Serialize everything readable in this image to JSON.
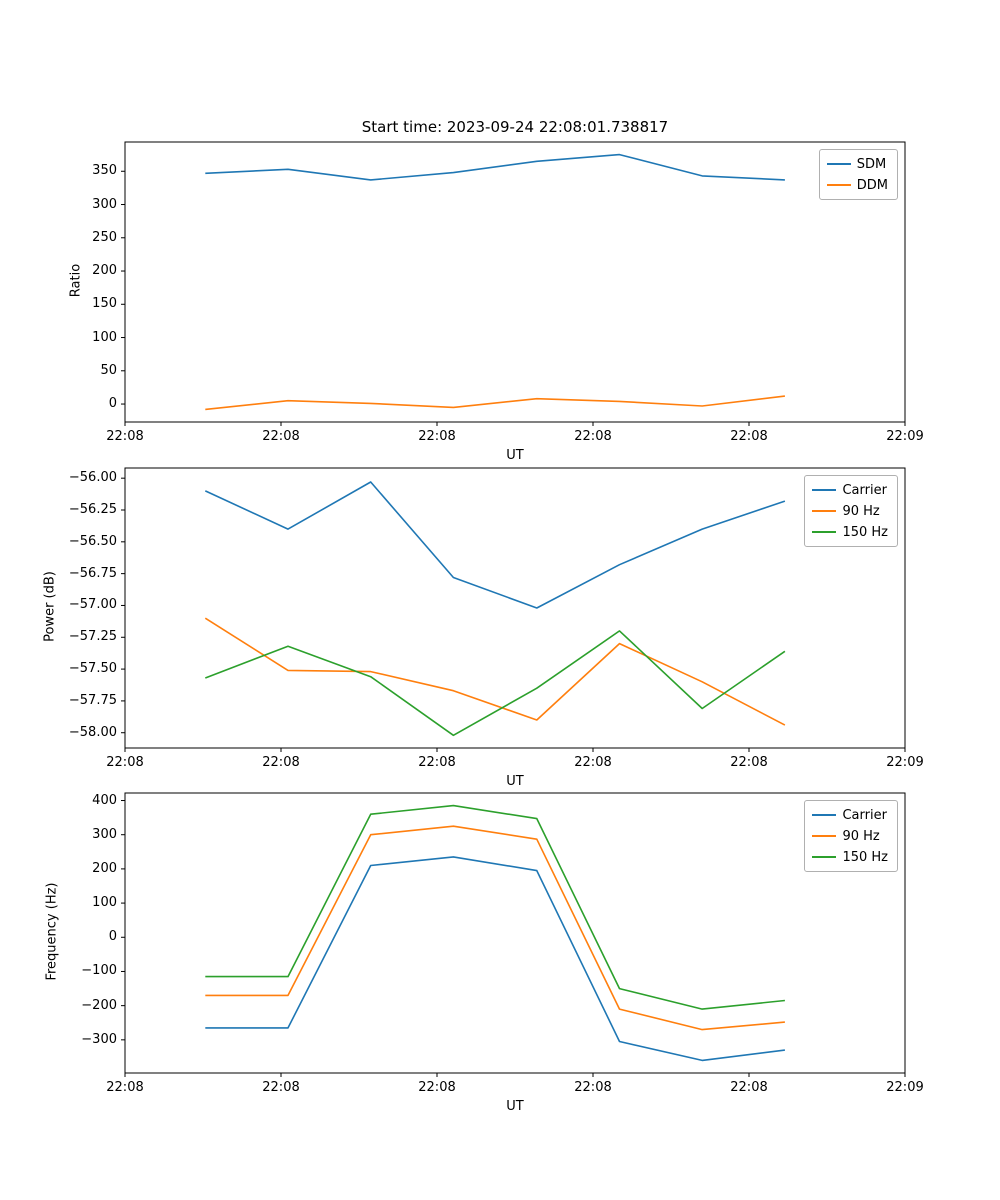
{
  "figure": {
    "title": "Start time: 2023-09-24 22:08:01.738817"
  },
  "chart_data": [
    {
      "type": "line",
      "name": "ratio-chart",
      "title": "Start time: 2023-09-24 22:08:01.738817",
      "xlabel": "UT",
      "ylabel": "Ratio",
      "ylim": [
        -27,
        394
      ],
      "yticks": [
        0,
        50,
        100,
        150,
        200,
        250,
        300,
        350
      ],
      "ytick_decimals": 0,
      "xticks": [
        0,
        0.2,
        0.4,
        0.6,
        0.8,
        1.0
      ],
      "xticklabels": [
        "22:08",
        "22:08",
        "22:08",
        "22:08",
        "22:08",
        "22:09"
      ],
      "x": [
        0.103,
        0.209,
        0.315,
        0.421,
        0.528,
        0.634,
        0.74,
        0.846
      ],
      "legend_position": "upper right",
      "grid": false,
      "series": [
        {
          "name": "SDM",
          "color": "#1f77b4",
          "values": [
            347,
            353,
            337,
            348,
            365,
            375,
            343,
            337
          ]
        },
        {
          "name": "DDM",
          "color": "#ff7f0e",
          "values": [
            -8,
            5,
            1,
            -5,
            8,
            4,
            -3,
            12
          ]
        }
      ]
    },
    {
      "type": "line",
      "name": "power-chart",
      "title": "",
      "xlabel": "UT",
      "ylabel": "Power (dB)",
      "ylim": [
        -58.12,
        -55.92
      ],
      "yticks": [
        -58.0,
        -57.75,
        -57.5,
        -57.25,
        -57.0,
        -56.75,
        -56.5,
        -56.25,
        -56.0
      ],
      "ytick_decimals": 2,
      "xticks": [
        0,
        0.2,
        0.4,
        0.6,
        0.8,
        1.0
      ],
      "xticklabels": [
        "22:08",
        "22:08",
        "22:08",
        "22:08",
        "22:08",
        "22:09"
      ],
      "x": [
        0.103,
        0.209,
        0.315,
        0.421,
        0.528,
        0.634,
        0.74,
        0.846
      ],
      "legend_position": "upper right",
      "grid": false,
      "series": [
        {
          "name": "Carrier",
          "color": "#1f77b4",
          "values": [
            -56.1,
            -56.4,
            -56.03,
            -56.78,
            -57.02,
            -56.68,
            -56.4,
            -56.18
          ]
        },
        {
          "name": "90 Hz",
          "color": "#ff7f0e",
          "values": [
            -57.1,
            -57.51,
            -57.52,
            -57.67,
            -57.9,
            -57.3,
            -57.6,
            -57.94
          ]
        },
        {
          "name": "150 Hz",
          "color": "#2ca02c",
          "values": [
            -57.57,
            -57.32,
            -57.56,
            -58.02,
            -57.65,
            -57.2,
            -57.81,
            -57.36
          ]
        }
      ]
    },
    {
      "type": "line",
      "name": "frequency-chart",
      "title": "",
      "xlabel": "UT",
      "ylabel": "Frequency (Hz)",
      "ylim": [
        -397,
        422
      ],
      "yticks": [
        -300,
        -200,
        -100,
        0,
        100,
        200,
        300,
        400
      ],
      "ytick_decimals": 0,
      "xticks": [
        0,
        0.2,
        0.4,
        0.6,
        0.8,
        1.0
      ],
      "xticklabels": [
        "22:08",
        "22:08",
        "22:08",
        "22:08",
        "22:08",
        "22:09"
      ],
      "x": [
        0.103,
        0.209,
        0.315,
        0.421,
        0.528,
        0.634,
        0.74,
        0.846
      ],
      "legend_position": "upper right",
      "grid": false,
      "series": [
        {
          "name": "Carrier",
          "color": "#1f77b4",
          "values": [
            -265,
            -265,
            210,
            235,
            195,
            -305,
            -360,
            -330
          ]
        },
        {
          "name": "90 Hz",
          "color": "#ff7f0e",
          "values": [
            -170,
            -170,
            300,
            325,
            287,
            -210,
            -270,
            -248
          ]
        },
        {
          "name": "150 Hz",
          "color": "#2ca02c",
          "values": [
            -115,
            -115,
            360,
            385,
            347,
            -150,
            -210,
            -185
          ]
        }
      ]
    }
  ]
}
